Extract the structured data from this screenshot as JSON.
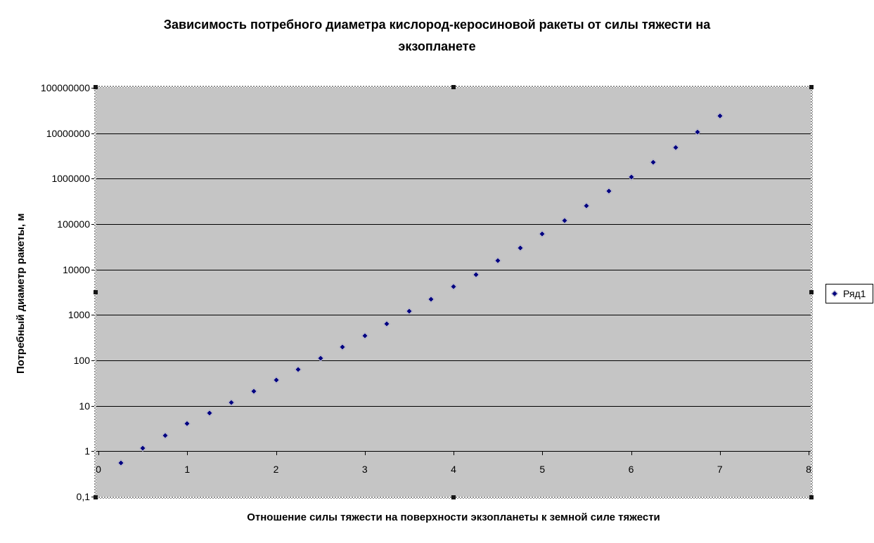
{
  "ui": {
    "plot_area_selected": true
  },
  "colors": {
    "background": "#ffffff",
    "plot_bg": "#c5c5c5",
    "gridline": "#000000",
    "text": "#000000",
    "series_marker": "#000080",
    "legend_bg": "#ffffff",
    "legend_border": "#000000"
  },
  "chart_data": {
    "type": "scatter",
    "title": "Зависимость потребного диаметра кислород-керосиновой ракеты от силы тяжести на экзопланете",
    "title_lines": [
      "Зависимость потребного диаметра кислород-керосиновой ракеты от силы тяжести на",
      "экзопланете"
    ],
    "xlabel": "Отношение силы тяжести на поверхности экзопланеты к земной силе тяжести",
    "ylabel": "Потребный диаметр ракеты, м",
    "grid": true,
    "legend_position": "right",
    "x_axis": {
      "min": 0,
      "max": 8,
      "ticks": [
        0,
        1,
        2,
        3,
        4,
        5,
        6,
        7,
        8
      ],
      "tick_labels": [
        "0",
        "1",
        "2",
        "3",
        "4",
        "5",
        "6",
        "7",
        "8"
      ]
    },
    "y_axis": {
      "scale": "log",
      "min": 0.1,
      "max": 100000000,
      "tick_values": [
        100000000,
        10000000,
        1000000,
        100000,
        10000,
        1000,
        100,
        10,
        1,
        0.1
      ],
      "tick_labels": [
        "100000000",
        "10000000",
        "1000000",
        "100000",
        "10000",
        "1000",
        "100",
        "10",
        "1",
        "0,1"
      ]
    },
    "series": [
      {
        "name": "Ряд1",
        "marker": "diamond",
        "color": "#000080",
        "points": [
          [
            0.25,
            0.55
          ],
          [
            0.5,
            1.15
          ],
          [
            0.75,
            2.2
          ],
          [
            1,
            4
          ],
          [
            1.25,
            7
          ],
          [
            1.5,
            12
          ],
          [
            1.75,
            21
          ],
          [
            2,
            37
          ],
          [
            2.25,
            64
          ],
          [
            2.5,
            110
          ],
          [
            2.75,
            200
          ],
          [
            3,
            350
          ],
          [
            3.25,
            640
          ],
          [
            3.5,
            1200
          ],
          [
            3.75,
            2200
          ],
          [
            4,
            4200
          ],
          [
            4.25,
            7800
          ],
          [
            4.5,
            15500
          ],
          [
            4.75,
            30000
          ],
          [
            5,
            60000
          ],
          [
            5.25,
            120000
          ],
          [
            5.5,
            250000
          ],
          [
            5.75,
            530000
          ],
          [
            6,
            1080000
          ],
          [
            6.25,
            2300000
          ],
          [
            6.5,
            4900000
          ],
          [
            6.75,
            10500000
          ],
          [
            7,
            24000000
          ]
        ]
      }
    ]
  }
}
